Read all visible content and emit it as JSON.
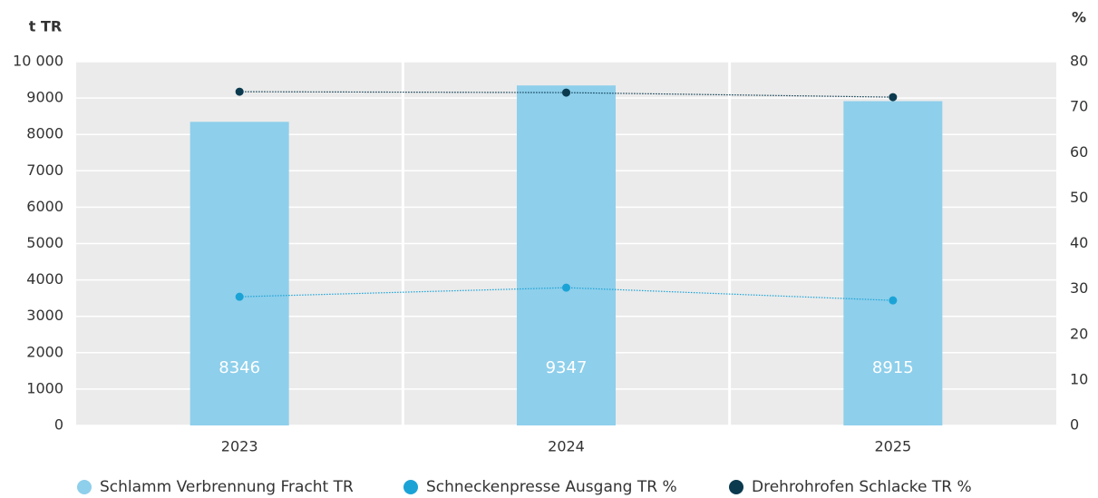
{
  "chart_data": {
    "type": "bar",
    "y_axis_label": "t TR",
    "y2_axis_label": "%",
    "categories": [
      "2023",
      "2024",
      "2025"
    ],
    "series": [
      {
        "name": "Schlamm Verbrennung Fracht TR",
        "color": "#8ecfeb",
        "values": [
          8346,
          9347,
          8915
        ]
      },
      {
        "name": "Schneckenpresse Ausgang TR %",
        "color": "#1ba3d6",
        "type": "line",
        "axis": "y2",
        "values": [
          28.3,
          30.3,
          27.5
        ]
      },
      {
        "name": "Drehrohrofen Schlacke TR %",
        "color": "#0b3a4f",
        "type": "line",
        "axis": "y2",
        "values": [
          73.4,
          73.2,
          72.2
        ]
      }
    ],
    "ylim": [
      0,
      10000
    ],
    "yticks": [
      0,
      1000,
      2000,
      3000,
      4000,
      5000,
      6000,
      7000,
      8000,
      9000,
      {
        "value": 10000,
        "label": "10 000"
      }
    ],
    "y2lim": [
      0,
      80
    ],
    "y2ticks": [
      0,
      10,
      20,
      30,
      40,
      50,
      60,
      70,
      80
    ],
    "grid": true,
    "legend": "bottom"
  }
}
